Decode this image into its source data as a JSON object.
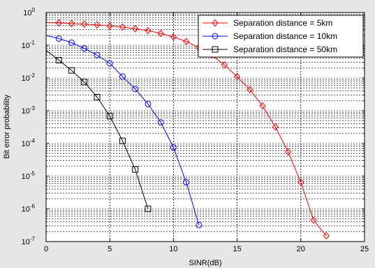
{
  "chart_data": {
    "type": "line",
    "xlabel": "SINR(dB)",
    "ylabel": "Bit error probability",
    "xlim": [
      0,
      25
    ],
    "ylim": [
      1e-07,
      1
    ],
    "yscale": "log",
    "grid": true,
    "legend_position": "top-right",
    "xticks": [
      "0",
      "5",
      "10",
      "15",
      "20",
      "25"
    ],
    "ytick_exponents": [
      "0",
      "-1",
      "-2",
      "-3",
      "-4",
      "-5",
      "-6",
      "-7"
    ],
    "ytick_base": "10",
    "series": [
      {
        "name": "Separation distance = 5km",
        "color": "#ff0000",
        "marker": "diamond",
        "x": [
          0,
          1,
          2,
          3,
          4,
          5,
          6,
          7,
          8,
          9,
          10,
          11,
          12,
          13,
          14,
          15,
          16,
          17,
          18,
          19,
          20,
          21,
          22
        ],
        "y": [
          0.49,
          0.48,
          0.46,
          0.44,
          0.42,
          0.39,
          0.36,
          0.32,
          0.28,
          0.23,
          0.18,
          0.13,
          0.085,
          0.05,
          0.025,
          0.011,
          0.0044,
          0.0014,
          0.00032,
          5.5e-05,
          6.5e-06,
          4.5e-07,
          1.5e-07
        ]
      },
      {
        "name": "Separation distance = 10km",
        "color": "#0000ff",
        "marker": "circle",
        "x": [
          0,
          1,
          2,
          3,
          4,
          5,
          6,
          7,
          8,
          9,
          10,
          11,
          12
        ],
        "y": [
          0.2,
          0.16,
          0.12,
          0.08,
          0.05,
          0.028,
          0.011,
          0.0046,
          0.0016,
          0.00044,
          7.5e-05,
          6.5e-06,
          3.2e-07
        ]
      },
      {
        "name": "Separation distance = 50km",
        "color": "#000000",
        "marker": "square",
        "x": [
          0,
          1,
          2,
          3,
          4,
          5,
          6,
          7,
          8
        ],
        "y": [
          0.07,
          0.035,
          0.017,
          0.0075,
          0.0026,
          0.00068,
          0.00012,
          1.6e-05,
          1e-06
        ]
      }
    ]
  }
}
